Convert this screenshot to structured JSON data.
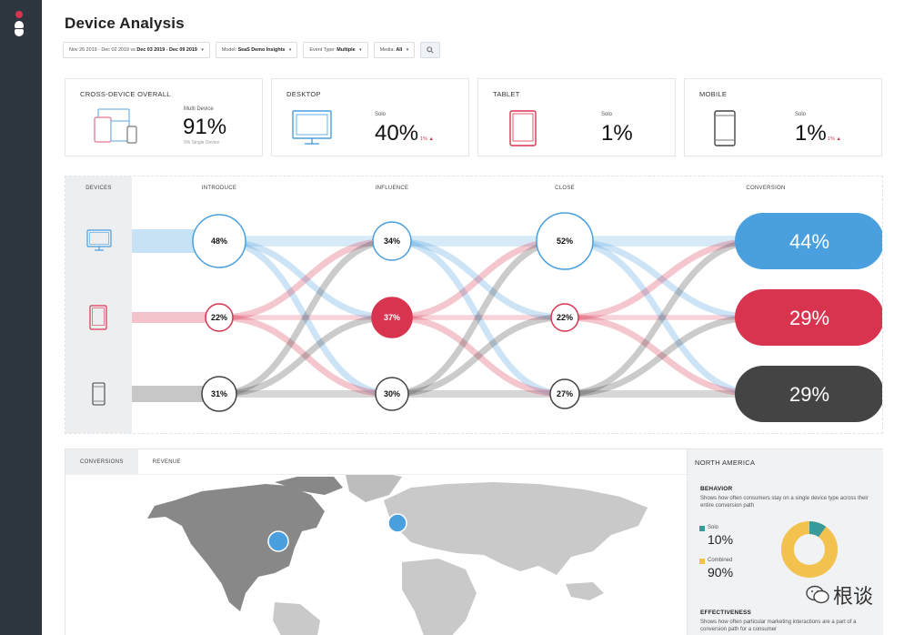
{
  "page": {
    "title": "Device Analysis"
  },
  "filters": {
    "date_compare": "Nov 26 2019 - Dec 02 2019",
    "date_vs": "vs",
    "date_range": "Dec 03 2019 - Dec 09 2019",
    "model_label": "Model:",
    "model_value": "SeaS Demo Insights",
    "event_label": "Event Type:",
    "event_value": "Multiple",
    "media_label": "Media:",
    "media_value": "All",
    "search_icon": "search-icon"
  },
  "cards": {
    "cross": {
      "title": "CROSS-DEVICE OVERALL",
      "sub": "Multi Device",
      "value": "91%",
      "tiny": "9% Single Device"
    },
    "desktop": {
      "title": "DESKTOP",
      "sub": "Solo",
      "value": "40%",
      "delta": "1% ▲"
    },
    "tablet": {
      "title": "TABLET",
      "sub": "Solo",
      "value": "1%"
    },
    "mobile": {
      "title": "MOBILE",
      "sub": "Solo",
      "value": "1%",
      "delta": "1% ▲"
    }
  },
  "flow": {
    "headers": {
      "devices": "DEVICES",
      "introduce": "INTRODUCE",
      "influence": "INFLUENCE",
      "close": "CLOSE",
      "conversion": "CONVERSION"
    },
    "colors": {
      "desktop": "#4a9fdf",
      "tablet": "#d9344f",
      "mobile": "#444444"
    },
    "rows": [
      {
        "device": "desktop",
        "icon": "monitor-icon",
        "introduce": "48%",
        "influence": "34%",
        "close": "52%",
        "conversion": "44%"
      },
      {
        "device": "tablet",
        "icon": "tablet-icon",
        "introduce": "22%",
        "influence": "37%",
        "close": "22%",
        "conversion": "29%"
      },
      {
        "device": "mobile",
        "icon": "phone-icon",
        "introduce": "31%",
        "influence": "30%",
        "close": "27%",
        "conversion": "29%"
      }
    ]
  },
  "map": {
    "tabs": [
      "CONVERSIONS",
      "REVENUE"
    ],
    "region": "NORTH AMERICA",
    "behavior": {
      "title": "BEHAVIOR",
      "desc": "Shows how often consumers stay on a single device type across their entire conversion path",
      "solo_label": "Solo",
      "solo_value": "10%",
      "combined_label": "Combined",
      "combined_value": "90%",
      "solo_fraction": 0.1,
      "solo_color": "#3a9a9a",
      "combined_color": "#f2c14e"
    },
    "effectiveness": {
      "title": "EFFECTIVENESS",
      "desc": "Shows how often particular marketing interactions are a part of a conversion path for a consumer"
    }
  },
  "watermark": {
    "text": "根谈"
  }
}
